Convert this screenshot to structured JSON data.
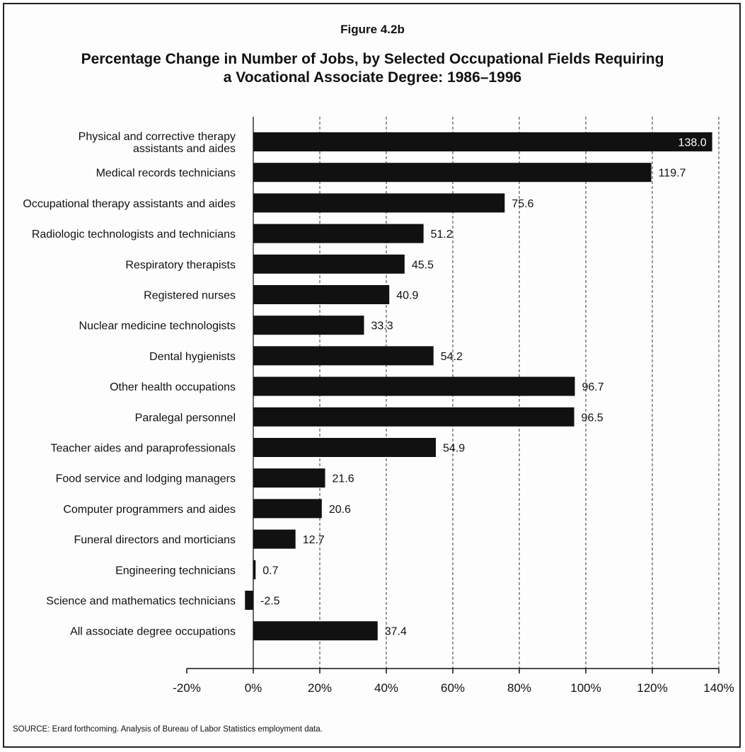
{
  "figure_label": "Figure 4.2b",
  "title_line1": "Percentage Change in Number of Jobs, by Selected Occupational Fields Requiring",
  "title_line2": "a Vocational Associate Degree: 1986–1996",
  "source": "SOURCE: Erard forthcoming. Analysis of Bureau of Labor Statistics employment data.",
  "colors": {
    "bar": "#111111",
    "grid": "#333333",
    "label_on_bar": "#ffffff"
  },
  "chart_data": {
    "type": "bar",
    "orientation": "horizontal",
    "categories": [
      [
        "Physical and corrective therapy",
        "assistants and aides"
      ],
      [
        "Medical records technicians"
      ],
      [
        "Occupational therapy assistants and aides"
      ],
      [
        "Radiologic technologists and technicians"
      ],
      [
        "Respiratory therapists"
      ],
      [
        "Registered nurses"
      ],
      [
        "Nuclear medicine technologists"
      ],
      [
        "Dental hygienists"
      ],
      [
        "Other health occupations"
      ],
      [
        "Paralegal personnel"
      ],
      [
        "Teacher aides and paraprofessionals"
      ],
      [
        "Food service and lodging managers"
      ],
      [
        "Computer programmers and aides"
      ],
      [
        "Funeral directors and morticians"
      ],
      [
        "Engineering technicians"
      ],
      [
        "Science and mathematics technicians"
      ],
      [
        "All associate degree occupations"
      ]
    ],
    "values": [
      138.0,
      119.7,
      75.6,
      51.2,
      45.5,
      40.9,
      33.3,
      54.2,
      96.7,
      96.5,
      54.9,
      21.6,
      20.6,
      12.7,
      0.7,
      -2.5,
      37.4
    ],
    "value_labels": [
      "138.0",
      "119.7",
      "75.6",
      "51.2",
      "45.5",
      "40.9",
      "33.3",
      "54.2",
      "96.7",
      "96.5",
      "54.9",
      "21.6",
      "20.6",
      "12.7",
      "0.7",
      "-2.5",
      "37.4"
    ],
    "xlim": [
      -20,
      140
    ],
    "xticks": [
      -20,
      0,
      20,
      40,
      60,
      80,
      100,
      120,
      140
    ],
    "xtick_labels": [
      "-20%",
      "0%",
      "20%",
      "40%",
      "60%",
      "80%",
      "100%",
      "120%",
      "140%"
    ],
    "grid": "vertical dashed",
    "legend": "none",
    "xlabel": "",
    "ylabel": ""
  }
}
